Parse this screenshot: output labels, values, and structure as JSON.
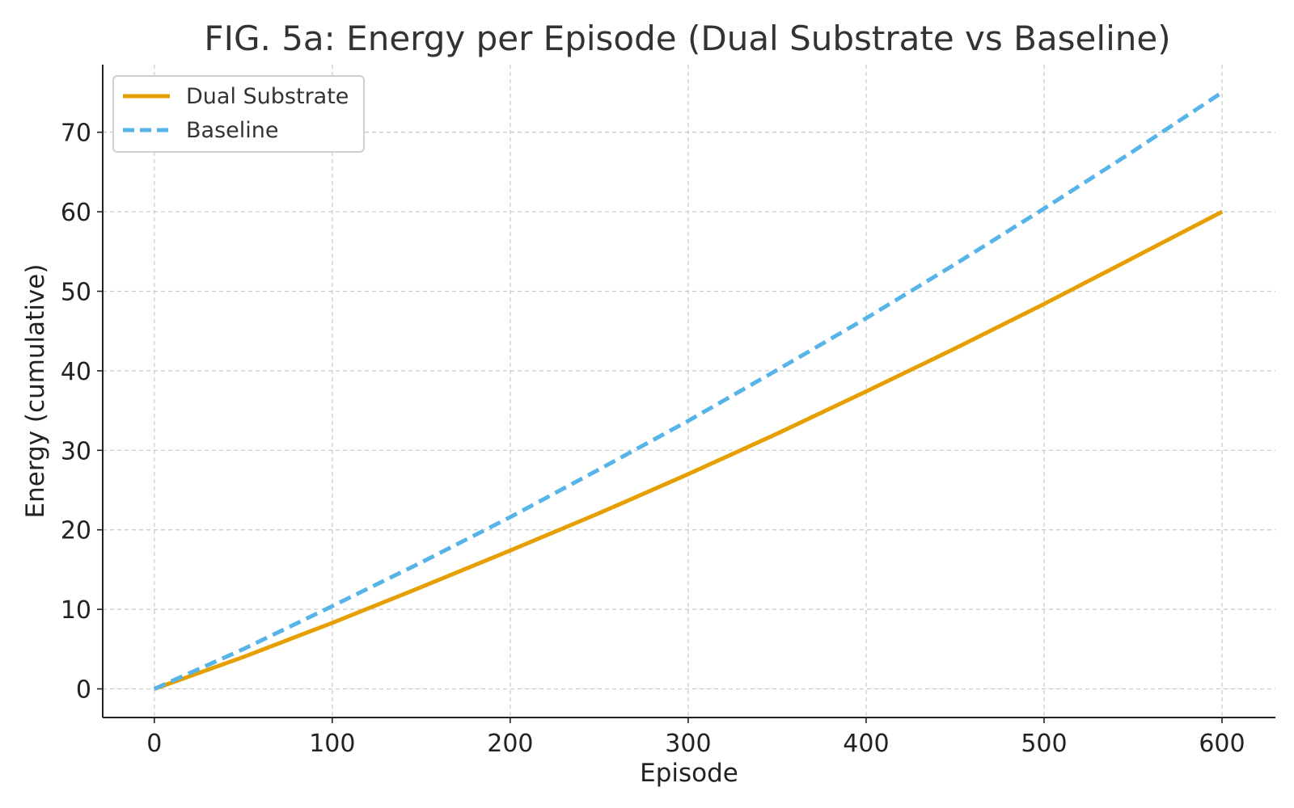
{
  "chart_data": {
    "type": "line",
    "title": "FIG. 5a: Energy per Episode (Dual Substrate vs Baseline)",
    "xlabel": "Episode",
    "ylabel": "Energy (cumulative)",
    "xlim": [
      -29,
      630
    ],
    "ylim": [
      -3.6,
      78.5
    ],
    "x_ticks": [
      0,
      100,
      200,
      300,
      400,
      500,
      600
    ],
    "y_ticks": [
      0,
      10,
      20,
      30,
      40,
      50,
      60,
      70
    ],
    "grid": true,
    "legend_position": "top-left",
    "x": [
      0,
      50,
      100,
      150,
      200,
      250,
      300,
      350,
      400,
      450,
      500,
      550,
      600
    ],
    "series": [
      {
        "name": "Dual Substrate",
        "color": "#E69F00",
        "style": "solid",
        "values": [
          0,
          4.0,
          8.3,
          12.8,
          17.4,
          22.1,
          27.0,
          32.1,
          37.4,
          42.8,
          48.4,
          54.2,
          60.0
        ]
      },
      {
        "name": "Baseline",
        "color": "#56B4E9",
        "style": "dashed",
        "values": [
          0,
          5.0,
          10.4,
          15.9,
          21.6,
          27.6,
          33.7,
          40.1,
          46.6,
          53.4,
          60.4,
          67.6,
          75.0
        ]
      }
    ]
  }
}
